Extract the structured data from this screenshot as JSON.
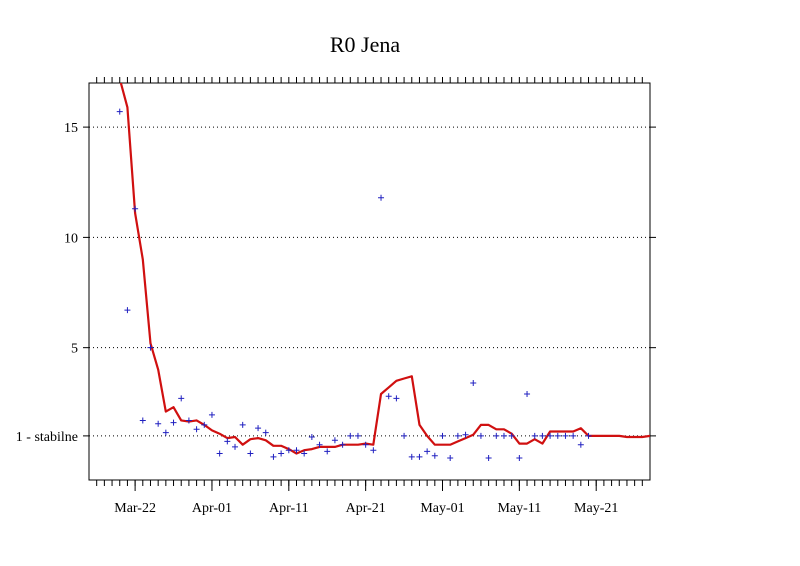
{
  "chart_data": {
    "type": "line",
    "title": "R0 Jena",
    "xlabel": "",
    "ylabel": "",
    "x_start": "Mar-18",
    "x_end": "May-28",
    "ylim": [
      -1,
      17
    ],
    "y_ticks": [
      {
        "value": 1,
        "label": "1 - stabilne"
      },
      {
        "value": 5,
        "label": "5"
      },
      {
        "value": 10,
        "label": "10"
      },
      {
        "value": 15,
        "label": "15"
      }
    ],
    "x_tick_labels": [
      {
        "date": "Mar-22",
        "label": "Mar-22"
      },
      {
        "date": "Apr-01",
        "label": "Apr-01"
      },
      {
        "date": "Apr-11",
        "label": "Apr-11"
      },
      {
        "date": "Apr-21",
        "label": "Apr-21"
      },
      {
        "date": "May-01",
        "label": "May-01"
      },
      {
        "date": "May-11",
        "label": "May-11"
      },
      {
        "date": "May-21",
        "label": "May-21"
      }
    ],
    "grid": "horizontal dotted",
    "series": [
      {
        "kind": "line",
        "color": "#d01010",
        "points": [
          [
            "Mar-20",
            17.2
          ],
          [
            "Mar-21",
            15.9
          ],
          [
            "Mar-22",
            11.1
          ],
          [
            "Mar-23",
            9.0
          ],
          [
            "Mar-24",
            5.2
          ],
          [
            "Mar-25",
            4.0
          ],
          [
            "Mar-26",
            2.1
          ],
          [
            "Mar-27",
            2.3
          ],
          [
            "Mar-28",
            1.7
          ],
          [
            "Mar-29",
            1.65
          ],
          [
            "Mar-30",
            1.7
          ],
          [
            "Mar-31",
            1.5
          ],
          [
            "Apr-01",
            1.25
          ],
          [
            "Apr-02",
            1.1
          ],
          [
            "Apr-03",
            0.9
          ],
          [
            "Apr-04",
            0.95
          ],
          [
            "Apr-05",
            0.6
          ],
          [
            "Apr-06",
            0.85
          ],
          [
            "Apr-07",
            0.9
          ],
          [
            "Apr-08",
            0.8
          ],
          [
            "Apr-09",
            0.55
          ],
          [
            "Apr-10",
            0.55
          ],
          [
            "Apr-11",
            0.4
          ],
          [
            "Apr-12",
            0.2
          ],
          [
            "Apr-13",
            0.35
          ],
          [
            "Apr-14",
            0.4
          ],
          [
            "Apr-15",
            0.5
          ],
          [
            "Apr-16",
            0.5
          ],
          [
            "Apr-17",
            0.5
          ],
          [
            "Apr-18",
            0.6
          ],
          [
            "Apr-19",
            0.6
          ],
          [
            "Apr-20",
            0.6
          ],
          [
            "Apr-21",
            0.65
          ],
          [
            "Apr-22",
            0.6
          ],
          [
            "Apr-23",
            2.9
          ],
          [
            "Apr-24",
            3.2
          ],
          [
            "Apr-25",
            3.5
          ],
          [
            "Apr-26",
            3.6
          ],
          [
            "Apr-27",
            3.7
          ],
          [
            "Apr-28",
            1.5
          ],
          [
            "Apr-29",
            1.0
          ],
          [
            "Apr-30",
            0.6
          ],
          [
            "May-01",
            0.6
          ],
          [
            "May-02",
            0.6
          ],
          [
            "May-03",
            0.75
          ],
          [
            "May-04",
            0.9
          ],
          [
            "May-05",
            1.05
          ],
          [
            "May-06",
            1.5
          ],
          [
            "May-07",
            1.5
          ],
          [
            "May-08",
            1.3
          ],
          [
            "May-09",
            1.3
          ],
          [
            "May-10",
            1.1
          ],
          [
            "May-11",
            0.65
          ],
          [
            "May-12",
            0.65
          ],
          [
            "May-13",
            0.85
          ],
          [
            "May-14",
            0.65
          ],
          [
            "May-15",
            1.2
          ],
          [
            "May-16",
            1.2
          ],
          [
            "May-17",
            1.2
          ],
          [
            "May-18",
            1.2
          ],
          [
            "May-19",
            1.35
          ],
          [
            "May-20",
            1.0
          ],
          [
            "May-21",
            1.0
          ],
          [
            "May-22",
            1.0
          ],
          [
            "May-23",
            1.0
          ],
          [
            "May-24",
            1.0
          ],
          [
            "May-25",
            0.95
          ],
          [
            "May-26",
            0.95
          ],
          [
            "May-27",
            0.95
          ],
          [
            "May-28",
            1.0
          ]
        ]
      },
      {
        "kind": "scatter",
        "color": "#2020c0",
        "points": [
          [
            "Mar-20",
            15.7
          ],
          [
            "Mar-21",
            6.7
          ],
          [
            "Mar-22",
            11.3
          ],
          [
            "Mar-23",
            1.7
          ],
          [
            "Mar-24",
            5.0
          ],
          [
            "Mar-25",
            1.55
          ],
          [
            "Mar-26",
            1.15
          ],
          [
            "Mar-27",
            1.6
          ],
          [
            "Mar-28",
            2.7
          ],
          [
            "Mar-29",
            1.7
          ],
          [
            "Mar-30",
            1.3
          ],
          [
            "Mar-31",
            1.5
          ],
          [
            "Apr-01",
            1.95
          ],
          [
            "Apr-02",
            0.2
          ],
          [
            "Apr-03",
            0.75
          ],
          [
            "Apr-04",
            0.5
          ],
          [
            "Apr-05",
            1.5
          ],
          [
            "Apr-06",
            0.2
          ],
          [
            "Apr-07",
            1.35
          ],
          [
            "Apr-08",
            1.15
          ],
          [
            "Apr-09",
            0.05
          ],
          [
            "Apr-10",
            0.2
          ],
          [
            "Apr-11",
            0.35
          ],
          [
            "Apr-12",
            0.35
          ],
          [
            "Apr-13",
            0.2
          ],
          [
            "Apr-14",
            0.95
          ],
          [
            "Apr-15",
            0.6
          ],
          [
            "Apr-16",
            0.3
          ],
          [
            "Apr-17",
            0.8
          ],
          [
            "Apr-18",
            0.6
          ],
          [
            "Apr-19",
            1.0
          ],
          [
            "Apr-20",
            1.0
          ],
          [
            "Apr-21",
            0.6
          ],
          [
            "Apr-22",
            0.35
          ],
          [
            "Apr-23",
            11.8
          ],
          [
            "Apr-24",
            2.8
          ],
          [
            "Apr-25",
            2.7
          ],
          [
            "Apr-26",
            1.0
          ],
          [
            "Apr-27",
            0.05
          ],
          [
            "Apr-28",
            0.05
          ],
          [
            "Apr-29",
            0.3
          ],
          [
            "Apr-30",
            0.1
          ],
          [
            "May-01",
            1.0
          ],
          [
            "May-02",
            0.0
          ],
          [
            "May-03",
            1.0
          ],
          [
            "May-04",
            1.05
          ],
          [
            "May-05",
            3.4
          ],
          [
            "May-06",
            1.0
          ],
          [
            "May-07",
            0.0
          ],
          [
            "May-08",
            1.0
          ],
          [
            "May-09",
            1.0
          ],
          [
            "May-10",
            1.0
          ],
          [
            "May-11",
            0.0
          ],
          [
            "May-12",
            2.9
          ],
          [
            "May-13",
            1.0
          ],
          [
            "May-14",
            1.0
          ],
          [
            "May-15",
            1.0
          ],
          [
            "May-16",
            1.0
          ],
          [
            "May-17",
            1.0
          ],
          [
            "May-18",
            1.0
          ],
          [
            "May-19",
            0.6
          ],
          [
            "May-20",
            1.0
          ]
        ]
      }
    ]
  }
}
